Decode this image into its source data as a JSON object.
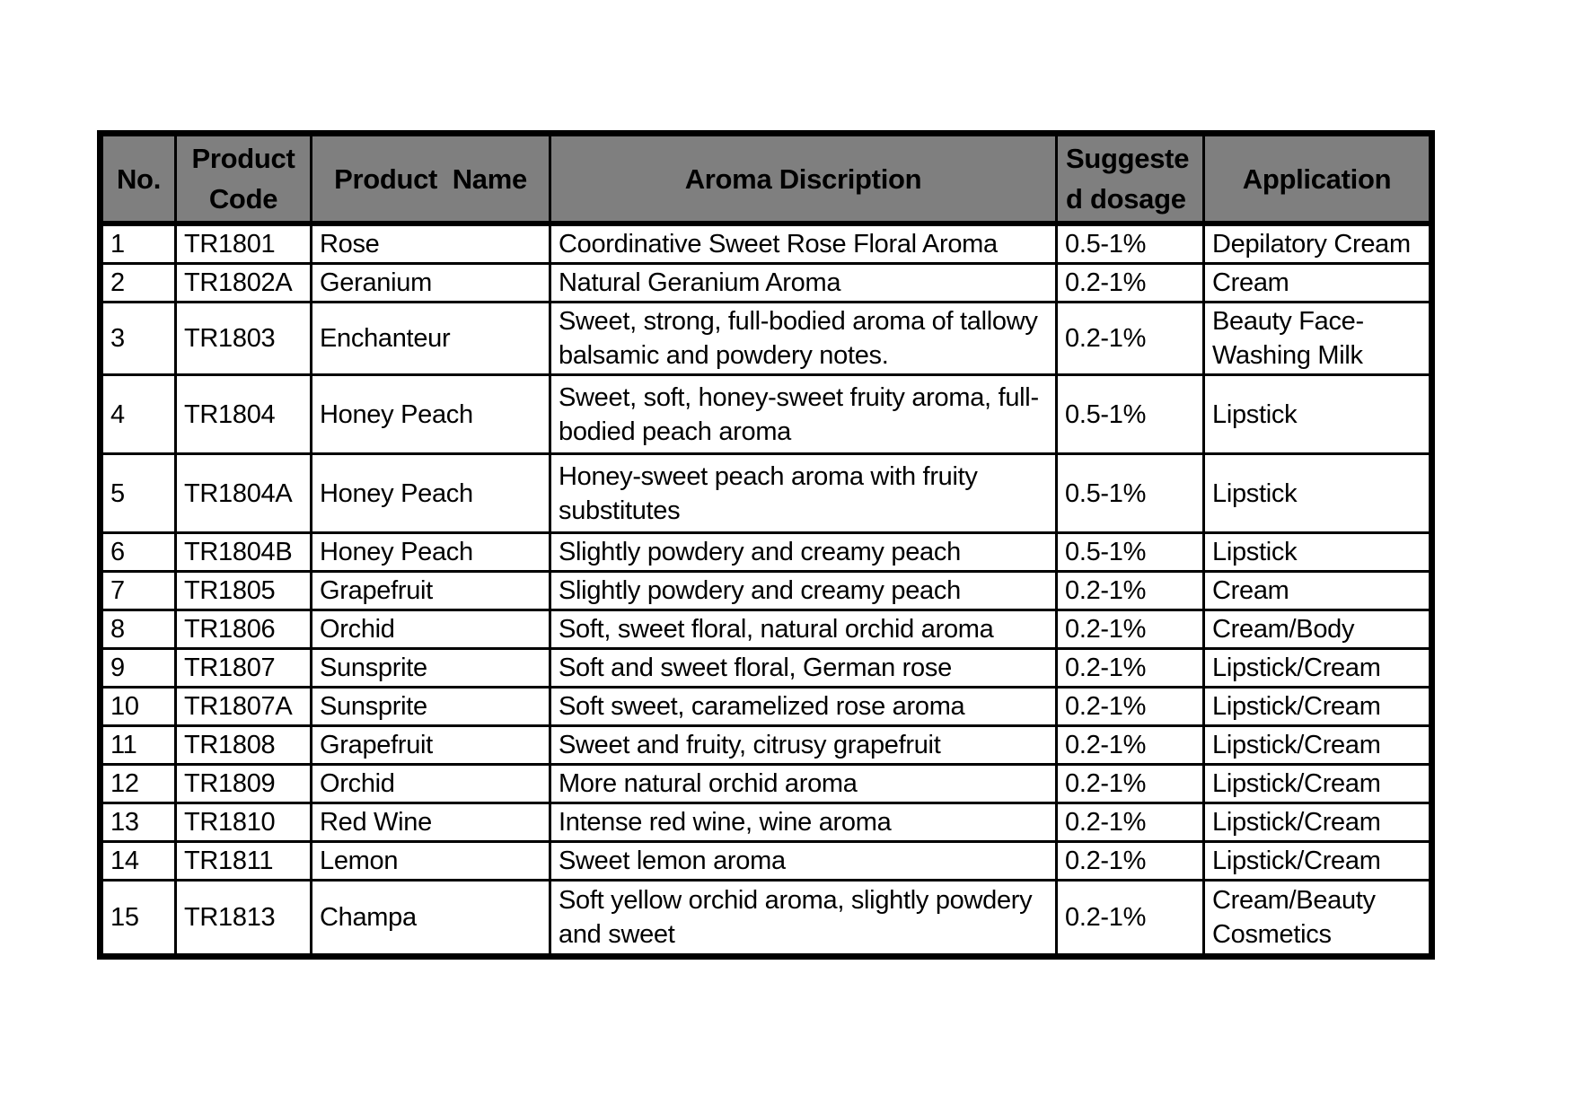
{
  "page": {
    "background_color": "#ffffff",
    "header_bg_color": "#7f7f7f",
    "border_color": "#000000",
    "text_color": "#000000"
  },
  "table": {
    "columns": [
      {
        "label": "No.",
        "display": "No."
      },
      {
        "label": "Product Code",
        "display": "Product Code"
      },
      {
        "label": "Product  Name",
        "display": "Product  Name"
      },
      {
        "label": "Aroma Discription",
        "display": "Aroma Discription"
      },
      {
        "label": "Suggested dosage",
        "display": "Suggeste\nd dosage"
      },
      {
        "label": "Application",
        "display": "Application"
      }
    ],
    "rows": [
      [
        "1",
        "TR1801",
        "Rose",
        "Coordinative Sweet Rose Floral Aroma",
        "0.5-1%",
        "Depilatory Cream"
      ],
      [
        "2",
        "TR1802A",
        "Geranium",
        "Natural Geranium Aroma",
        "0.2-1%",
        "Cream"
      ],
      [
        "3",
        "TR1803",
        "Enchanteur",
        "Sweet, strong, full-bodied aroma of tallowy balsamic and powdery notes.",
        "0.2-1%",
        "Beauty Face-Washing Milk"
      ],
      [
        "4",
        "TR1804",
        "Honey Peach",
        "Sweet, soft, honey-sweet fruity aroma, full-bodied peach aroma",
        "0.5-1%",
        "Lipstick"
      ],
      [
        "5",
        "TR1804A",
        "Honey Peach",
        "Honey-sweet peach aroma with fruity substitutes",
        "0.5-1%",
        "Lipstick"
      ],
      [
        "6",
        "TR1804B",
        "Honey Peach",
        "Slightly powdery and creamy peach",
        "0.5-1%",
        "Lipstick"
      ],
      [
        "7",
        "TR1805",
        "Grapefruit",
        "Slightly powdery and creamy peach",
        "0.2-1%",
        "Cream"
      ],
      [
        "8",
        "TR1806",
        "Orchid",
        "Soft, sweet floral, natural orchid aroma",
        "0.2-1%",
        "Cream/Body"
      ],
      [
        "9",
        "TR1807",
        "Sunsprite",
        "Soft and sweet floral, German rose",
        "0.2-1%",
        "Lipstick/Cream"
      ],
      [
        "10",
        "TR1807A",
        "Sunsprite",
        "Soft sweet, caramelized rose aroma",
        "0.2-1%",
        "Lipstick/Cream"
      ],
      [
        "11",
        "TR1808",
        "Grapefruit",
        "Sweet and fruity, citrusy grapefruit",
        "0.2-1%",
        "Lipstick/Cream"
      ],
      [
        "12",
        "TR1809",
        "Orchid",
        "More natural orchid aroma",
        "0.2-1%",
        "Lipstick/Cream"
      ],
      [
        "13",
        "TR1810",
        "Red Wine",
        "Intense red wine, wine aroma",
        "0.2-1%",
        "Lipstick/Cream"
      ],
      [
        "14",
        "TR1811",
        "Lemon",
        "Sweet lemon aroma",
        "0.2-1%",
        "Lipstick/Cream"
      ],
      [
        "15",
        "TR1813",
        "Champa",
        "Soft yellow orchid aroma, slightly powdery and sweet",
        "0.2-1%",
        "Cream/Beauty Cosmetics"
      ]
    ]
  }
}
